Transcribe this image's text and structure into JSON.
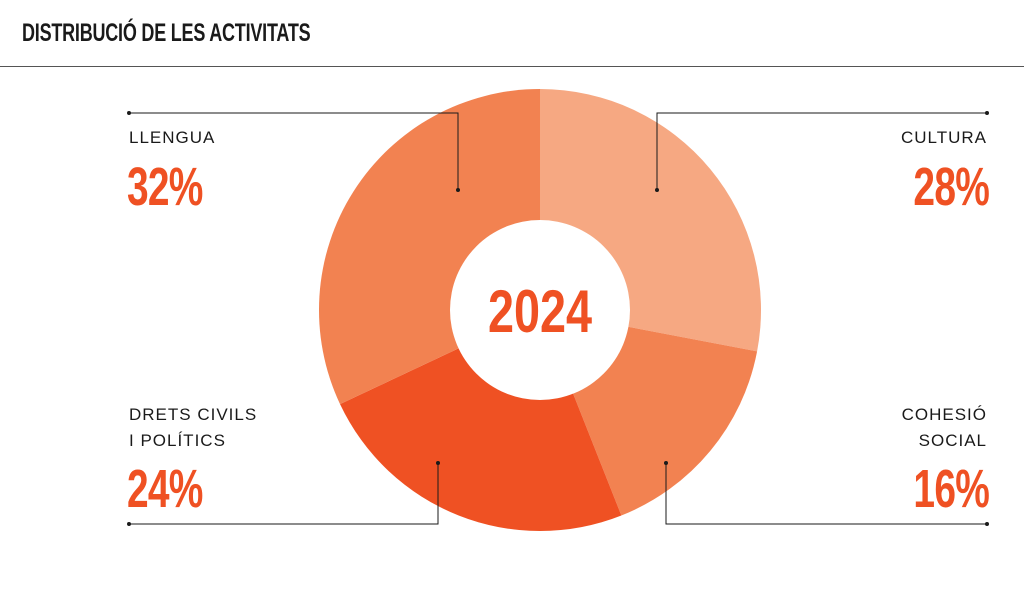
{
  "header": {
    "title": "DISTRIBUCIÓ DE LES ACTIVITATS"
  },
  "colors": {
    "cultura": "#F6A882",
    "cohesio": "#F28251",
    "drets": "#EF5123",
    "llengua": "#F28251",
    "accent_text": "#EF5123"
  },
  "chart_data": {
    "type": "pie",
    "style": "donut",
    "center_label": "2024",
    "order": "clockwise from top",
    "slices": [
      {
        "label": "CULTURA",
        "value": 28,
        "display": "28%",
        "color": "#F6A882"
      },
      {
        "label": "COHESIÓ SOCIAL",
        "value": 16,
        "display": "16%",
        "color": "#F28251"
      },
      {
        "label": "DRETS CIVILS I POLÍTICS",
        "value": 24,
        "display": "24%",
        "color": "#EF5123"
      },
      {
        "label": "LLENGUA",
        "value": 32,
        "display": "32%",
        "color": "#F28251"
      }
    ],
    "labels": {
      "llengua": {
        "name": "LLENGUA",
        "pct": "32%"
      },
      "cultura": {
        "name": "CULTURA",
        "pct": "28%"
      },
      "drets": {
        "name1": "DRETS CIVILS",
        "name2": "I POLÍTICS",
        "pct": "24%"
      },
      "cohesio": {
        "name1": "COHESIÓ",
        "name2": "SOCIAL",
        "pct": "16%"
      }
    }
  }
}
